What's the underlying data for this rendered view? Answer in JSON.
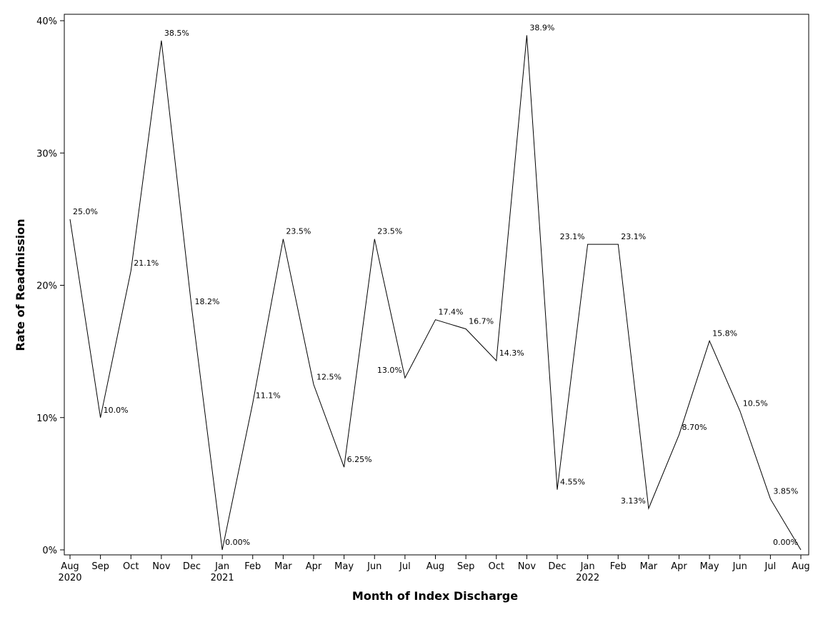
{
  "chart_data": {
    "type": "line",
    "title": "",
    "xlabel": "Month of Index Discharge",
    "ylabel": "Rate of Readmission",
    "ylim": [
      0,
      40
    ],
    "yticks": [
      0,
      10,
      20,
      30,
      40
    ],
    "ytick_labels": [
      "0%",
      "10%",
      "20%",
      "30%",
      "40%"
    ],
    "grid": false,
    "legend": "none",
    "line_color": "#000000",
    "categories": [
      "Aug",
      "Sep",
      "Oct",
      "Nov",
      "Dec",
      "Jan",
      "Feb",
      "Mar",
      "Apr",
      "May",
      "Jun",
      "Jul",
      "Aug",
      "Sep",
      "Oct",
      "Nov",
      "Dec",
      "Jan",
      "Feb",
      "Mar",
      "Apr",
      "May",
      "Jun",
      "Jul",
      "Aug"
    ],
    "year_labels": [
      "2020",
      "",
      "",
      "",
      "",
      "2021",
      "",
      "",
      "",
      "",
      "",
      "",
      "",
      "",
      "",
      "",
      "",
      "2022",
      "",
      "",
      "",
      "",
      "",
      "",
      ""
    ],
    "series": [
      {
        "values": [
          25.0,
          10.0,
          21.1,
          38.5,
          18.2,
          0.0,
          11.1,
          23.5,
          12.5,
          6.25,
          23.5,
          13.0,
          17.4,
          16.7,
          14.3,
          38.9,
          4.55,
          23.1,
          23.1,
          3.13,
          8.7,
          15.8,
          10.5,
          3.85,
          0.0
        ],
        "labels": [
          "25.0%",
          "10.0%",
          "21.1%",
          "38.5%",
          "18.2%",
          "0.00%",
          "11.1%",
          "23.5%",
          "12.5%",
          "6.25%",
          "23.5%",
          "13.0%",
          "17.4%",
          "16.7%",
          "14.3%",
          "38.9%",
          "4.55%",
          "23.1%",
          "23.1%",
          "3.13%",
          "8.70%",
          "15.8%",
          "10.5%",
          "3.85%",
          "0.00%"
        ]
      }
    ]
  }
}
